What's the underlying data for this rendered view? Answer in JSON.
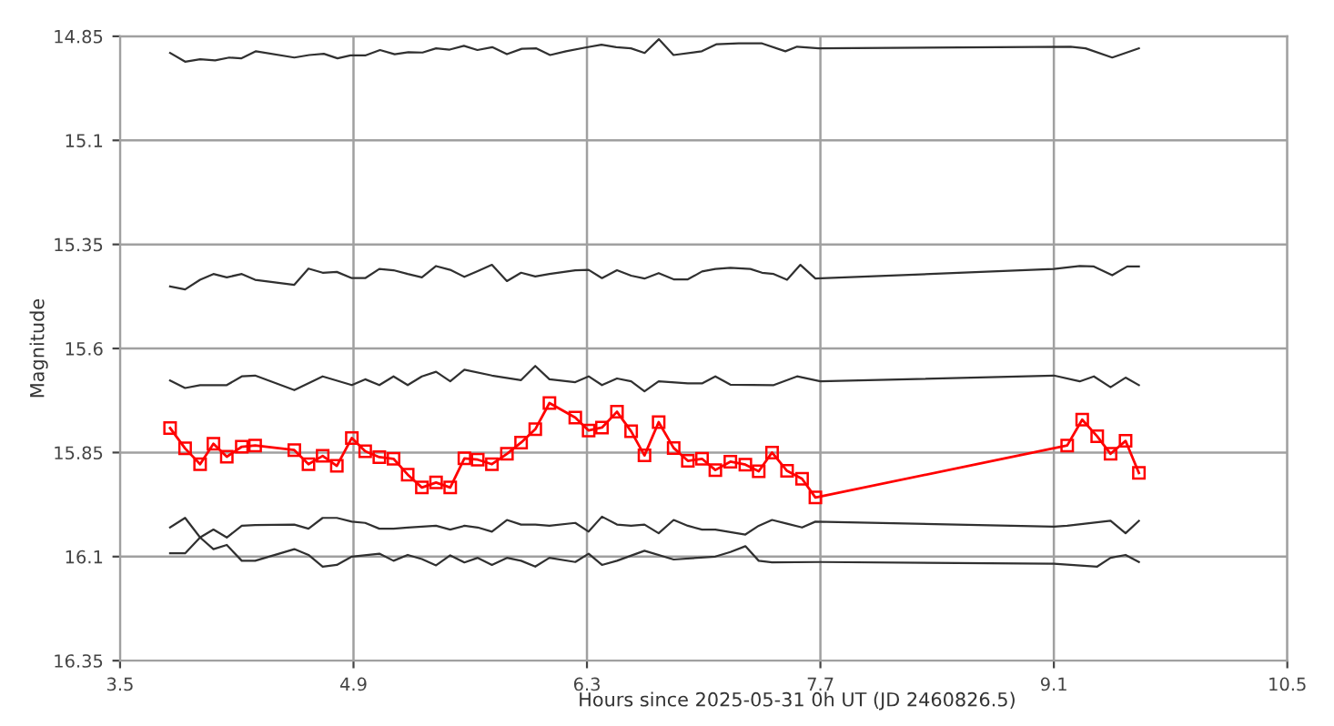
{
  "chart_data": {
    "type": "line",
    "xlabel": "Hours since 2025-05-31 0h UT (JD 2460826.5)",
    "ylabel": "Magnitude",
    "xlim": [
      3.5,
      10.5
    ],
    "xticks": [
      3.5,
      4.9,
      6.3,
      7.7,
      9.1,
      10.5
    ],
    "ylim": [
      16.35,
      14.85
    ],
    "yticks": [
      14.85,
      15.1,
      15.35,
      15.6,
      15.85,
      16.1,
      16.35
    ],
    "grid": true,
    "series": [
      {
        "color": "#303030",
        "marker": "none",
        "x": [
          3.8,
          3.89,
          3.98,
          4.07,
          4.155,
          4.226,
          4.315,
          4.545,
          4.634,
          4.722,
          4.804,
          4.882,
          4.97,
          5.059,
          5.147,
          5.229,
          5.314,
          5.395,
          5.477,
          5.562,
          5.643,
          5.732,
          5.82,
          5.909,
          5.997,
          6.079,
          6.174,
          6.291,
          6.387,
          6.476,
          6.564,
          6.646,
          6.731,
          6.819,
          6.989,
          7.078,
          7.21,
          7.35,
          7.49,
          7.56,
          7.69,
          9.2,
          9.29,
          9.45,
          9.61
        ],
        "values": [
          14.89,
          14.911,
          14.905,
          14.908,
          14.901,
          14.903,
          14.886,
          14.901,
          14.895,
          14.892,
          14.903,
          14.896,
          14.896,
          14.883,
          14.893,
          14.888,
          14.889,
          14.879,
          14.882,
          14.873,
          14.883,
          14.876,
          14.893,
          14.88,
          14.879,
          14.895,
          14.886,
          14.877,
          14.87,
          14.876,
          14.879,
          14.89,
          14.857,
          14.895,
          14.886,
          14.869,
          14.867,
          14.867,
          14.886,
          14.875,
          14.879,
          14.875,
          14.879,
          14.901,
          14.879
        ]
      },
      {
        "color": "#303030",
        "marker": "none",
        "x": [
          3.8,
          3.89,
          3.98,
          4.06,
          4.14,
          4.23,
          4.31,
          4.545,
          4.63,
          4.715,
          4.8,
          4.89,
          4.97,
          5.055,
          5.14,
          5.225,
          5.31,
          5.395,
          5.48,
          5.565,
          5.645,
          5.73,
          5.82,
          5.905,
          5.99,
          6.075,
          6.23,
          6.31,
          6.39,
          6.48,
          6.565,
          6.645,
          6.73,
          6.82,
          6.905,
          6.99,
          7.07,
          7.16,
          7.28,
          7.35,
          7.42,
          7.5,
          7.58,
          7.67,
          9.1,
          9.255,
          9.34,
          9.45,
          9.54,
          9.61
        ],
        "values": [
          15.451,
          15.458,
          15.435,
          15.421,
          15.429,
          15.421,
          15.435,
          15.447,
          15.408,
          15.418,
          15.416,
          15.431,
          15.431,
          15.409,
          15.412,
          15.421,
          15.429,
          15.402,
          15.411,
          15.428,
          15.414,
          15.399,
          15.438,
          15.418,
          15.427,
          15.421,
          15.412,
          15.411,
          15.431,
          15.412,
          15.425,
          15.432,
          15.419,
          15.434,
          15.434,
          15.415,
          15.409,
          15.406,
          15.409,
          15.418,
          15.421,
          15.435,
          15.399,
          15.432,
          15.409,
          15.402,
          15.403,
          15.424,
          15.403,
          15.403
        ]
      },
      {
        "color": "#303030",
        "marker": "none",
        "x": [
          3.8,
          3.89,
          3.98,
          4.14,
          4.23,
          4.31,
          4.545,
          4.715,
          4.89,
          4.97,
          5.055,
          5.14,
          5.225,
          5.31,
          5.395,
          5.48,
          5.565,
          5.73,
          5.905,
          5.99,
          6.075,
          6.23,
          6.31,
          6.39,
          6.48,
          6.565,
          6.645,
          6.73,
          6.905,
          6.99,
          7.07,
          7.16,
          7.42,
          7.56,
          7.7,
          9.1,
          9.255,
          9.34,
          9.44,
          9.53,
          9.61
        ],
        "values": [
          15.677,
          15.695,
          15.688,
          15.688,
          15.667,
          15.665,
          15.7,
          15.667,
          15.688,
          15.674,
          15.688,
          15.667,
          15.688,
          15.667,
          15.656,
          15.679,
          15.651,
          15.665,
          15.676,
          15.642,
          15.674,
          15.681,
          15.667,
          15.688,
          15.672,
          15.679,
          15.703,
          15.679,
          15.684,
          15.684,
          15.667,
          15.687,
          15.688,
          15.667,
          15.679,
          15.665,
          15.679,
          15.667,
          15.693,
          15.67,
          15.688
        ]
      },
      {
        "color": "#ff0000",
        "marker": "square",
        "x": [
          3.8,
          3.89,
          3.98,
          4.06,
          4.14,
          4.23,
          4.31,
          4.545,
          4.63,
          4.715,
          4.8,
          4.89,
          4.97,
          5.055,
          5.14,
          5.225,
          5.31,
          5.395,
          5.48,
          5.565,
          5.645,
          5.73,
          5.82,
          5.905,
          5.99,
          6.075,
          6.23,
          6.31,
          6.39,
          6.48,
          6.565,
          6.645,
          6.73,
          6.82,
          6.905,
          6.99,
          7.07,
          7.16,
          7.25,
          7.33,
          7.41,
          7.5,
          7.59,
          7.67,
          9.18,
          9.27,
          9.36,
          9.44,
          9.53,
          9.61
        ],
        "values": [
          15.791,
          15.84,
          15.878,
          15.829,
          15.86,
          15.836,
          15.833,
          15.844,
          15.878,
          15.858,
          15.882,
          15.815,
          15.847,
          15.861,
          15.865,
          15.903,
          15.934,
          15.922,
          15.934,
          15.864,
          15.867,
          15.878,
          15.853,
          15.826,
          15.794,
          15.731,
          15.766,
          15.797,
          15.79,
          15.752,
          15.799,
          15.857,
          15.777,
          15.839,
          15.87,
          15.865,
          15.892,
          15.872,
          15.879,
          15.895,
          15.85,
          15.894,
          15.913,
          15.958,
          15.833,
          15.771,
          15.811,
          15.853,
          15.822,
          15.899
        ]
      },
      {
        "color": "#303030",
        "marker": "none",
        "x": [
          3.8,
          3.89,
          3.98,
          4.06,
          4.14,
          4.23,
          4.31,
          4.545,
          4.63,
          4.715,
          4.8,
          4.89,
          5.055,
          5.14,
          5.225,
          5.31,
          5.395,
          5.48,
          5.565,
          5.645,
          5.73,
          5.82,
          5.905,
          5.99,
          6.075,
          6.23,
          6.31,
          6.39,
          6.48,
          6.645,
          6.82,
          7.07,
          7.16,
          7.25,
          7.33,
          7.41,
          7.7,
          9.1,
          9.36,
          9.44,
          9.53,
          9.61
        ],
        "values": [
          16.03,
          16.007,
          16.054,
          16.082,
          16.072,
          16.11,
          16.11,
          16.082,
          16.096,
          16.124,
          16.12,
          16.1,
          16.093,
          16.11,
          16.096,
          16.106,
          16.121,
          16.097,
          16.114,
          16.103,
          16.12,
          16.103,
          16.11,
          16.124,
          16.103,
          16.113,
          16.093,
          16.12,
          16.11,
          16.086,
          16.107,
          16.1,
          16.089,
          16.075,
          16.11,
          16.114,
          16.113,
          16.117,
          16.124,
          16.103,
          16.096,
          16.113
        ]
      },
      {
        "color": "#303030",
        "marker": "none",
        "x": [
          3.8,
          3.89,
          3.98,
          4.06,
          4.14,
          4.23,
          4.31,
          4.545,
          4.63,
          4.715,
          4.8,
          4.89,
          4.97,
          5.055,
          5.14,
          5.225,
          5.31,
          5.395,
          5.48,
          5.565,
          5.645,
          5.73,
          5.82,
          5.905,
          5.99,
          6.075,
          6.23,
          6.31,
          6.39,
          6.48,
          6.565,
          6.645,
          6.73,
          6.82,
          6.905,
          6.99,
          7.07,
          7.16,
          7.25,
          7.33,
          7.41,
          7.5,
          7.59,
          7.67,
          9.1,
          9.18,
          9.44,
          9.53,
          9.61
        ],
        "values": [
          16.092,
          16.092,
          16.054,
          16.035,
          16.054,
          16.026,
          16.024,
          16.023,
          16.033,
          16.007,
          16.007,
          16.016,
          16.019,
          16.033,
          16.033,
          16.03,
          16.028,
          16.026,
          16.035,
          16.026,
          16.03,
          16.04,
          16.012,
          16.023,
          16.023,
          16.026,
          16.019,
          16.04,
          16.004,
          16.023,
          16.026,
          16.023,
          16.044,
          16.012,
          16.026,
          16.035,
          16.035,
          16.041,
          16.047,
          16.026,
          16.012,
          16.021,
          16.03,
          16.016,
          16.028,
          16.026,
          16.014,
          16.044,
          16.014
        ]
      }
    ]
  }
}
